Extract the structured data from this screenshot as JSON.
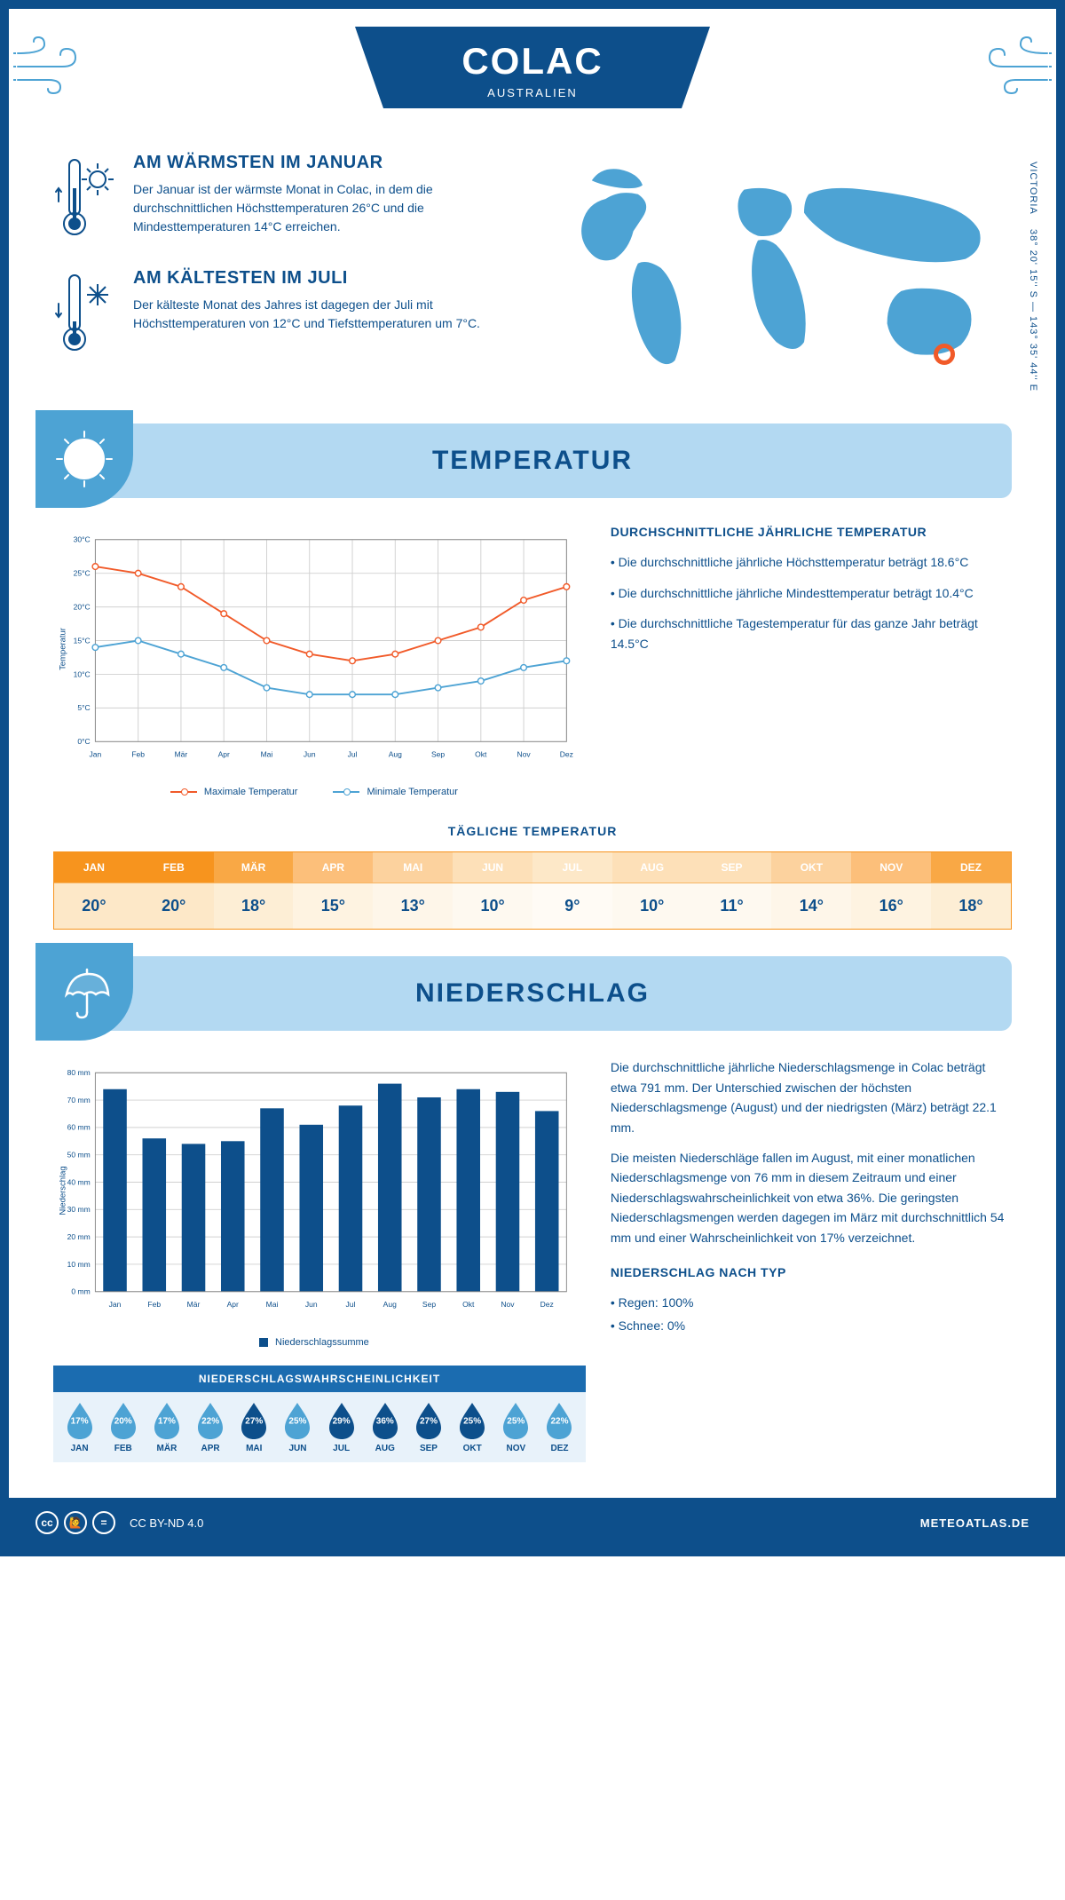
{
  "header": {
    "title": "COLAC",
    "subtitle": "AUSTRALIEN"
  },
  "coords": {
    "lat": "38° 20' 15'' S",
    "lon": "143° 35' 44'' E",
    "region": "VICTORIA"
  },
  "marker_pos": {
    "left_pct": 83,
    "top_pct": 78
  },
  "facts": {
    "warm": {
      "title": "AM WÄRMSTEN IM JANUAR",
      "text": "Der Januar ist der wärmste Monat in Colac, in dem die durchschnittlichen Höchsttemperaturen 26°C und die Mindesttemperaturen 14°C erreichen."
    },
    "cold": {
      "title": "AM KÄLTESTEN IM JULI",
      "text": "Der kälteste Monat des Jahres ist dagegen der Juli mit Höchsttemperaturen von 12°C und Tiefsttemperaturen um 7°C."
    }
  },
  "temperature": {
    "section_title": "TEMPERATUR",
    "annual_title": "DURCHSCHNITTLICHE JÄHRLICHE TEMPERATUR",
    "bullet1": "• Die durchschnittliche jährliche Höchsttemperatur beträgt 18.6°C",
    "bullet2": "• Die durchschnittliche jährliche Mindesttemperatur beträgt 10.4°C",
    "bullet3": "• Die durchschnittliche Tagestemperatur für das ganze Jahr beträgt 14.5°C",
    "daily_title": "TÄGLICHE TEMPERATUR",
    "months": [
      "JAN",
      "FEB",
      "MÄR",
      "APR",
      "MAI",
      "JUN",
      "JUL",
      "AUG",
      "SEP",
      "OKT",
      "NOV",
      "DEZ"
    ],
    "months_full": [
      "Jan",
      "Feb",
      "Mär",
      "Apr",
      "Mai",
      "Jun",
      "Jul",
      "Aug",
      "Sep",
      "Okt",
      "Nov",
      "Dez"
    ],
    "max": [
      26,
      25,
      23,
      19,
      15,
      13,
      12,
      13,
      15,
      17,
      21,
      23
    ],
    "min": [
      14,
      15,
      13,
      11,
      8,
      7,
      7,
      7,
      8,
      9,
      11,
      12
    ],
    "daily": [
      "20°",
      "20°",
      "18°",
      "15°",
      "13°",
      "10°",
      "9°",
      "10°",
      "11°",
      "14°",
      "16°",
      "18°"
    ],
    "head_colors": [
      "#f7941e",
      "#f7941e",
      "#f9a845",
      "#fcbf7a",
      "#fcd29e",
      "#fde0b8",
      "#fde8c8",
      "#fde0b8",
      "#fde0b8",
      "#fcd29e",
      "#fcbf7a",
      "#f9a845"
    ],
    "val_colors": [
      "#fde8c8",
      "#fde8c8",
      "#fdeed5",
      "#fef3e1",
      "#fef6e9",
      "#fef9f0",
      "#fffbf5",
      "#fef9f0",
      "#fef9f0",
      "#fef6e9",
      "#fef3e1",
      "#fdeed5"
    ],
    "y_ticks": [
      "0°C",
      "5°C",
      "10°C",
      "15°C",
      "20°C",
      "25°C",
      "30°C"
    ],
    "y_max": 30,
    "y_label": "Temperatur",
    "legend_max": "Maximale Temperatur",
    "legend_min": "Minimale Temperatur",
    "max_color": "#f15a29",
    "min_color": "#4da3d4"
  },
  "precipitation": {
    "section_title": "NIEDERSCHLAG",
    "months": [
      "Jan",
      "Feb",
      "Mär",
      "Apr",
      "Mai",
      "Jun",
      "Jul",
      "Aug",
      "Sep",
      "Okt",
      "Nov",
      "Dez"
    ],
    "values": [
      74,
      56,
      54,
      55,
      67,
      61,
      68,
      76,
      71,
      74,
      73,
      66
    ],
    "y_ticks": [
      0,
      10,
      20,
      30,
      40,
      50,
      60,
      70,
      80
    ],
    "y_max": 80,
    "y_label": "Niederschlag",
    "legend": "Niederschlagssumme",
    "text1": "Die durchschnittliche jährliche Niederschlagsmenge in Colac beträgt etwa 791 mm. Der Unterschied zwischen der höchsten Niederschlagsmenge (August) und der niedrigsten (März) beträgt 22.1 mm.",
    "text2": "Die meisten Niederschläge fallen im August, mit einer monatlichen Niederschlagsmenge von 76 mm in diesem Zeitraum und einer Niederschlagswahrscheinlichkeit von etwa 36%. Die geringsten Niederschlagsmengen werden dagegen im März mit durchschnittlich 54 mm und einer Wahrscheinlichkeit von 17% verzeichnet.",
    "type_title": "NIEDERSCHLAG NACH TYP",
    "type1": "• Regen: 100%",
    "type2": "• Schnee: 0%",
    "prob_title": "NIEDERSCHLAGSWAHRSCHEINLICHKEIT",
    "prob_months": [
      "JAN",
      "FEB",
      "MÄR",
      "APR",
      "MAI",
      "JUN",
      "JUL",
      "AUG",
      "SEP",
      "OKT",
      "NOV",
      "DEZ"
    ],
    "prob_values": [
      "17%",
      "20%",
      "17%",
      "22%",
      "27%",
      "25%",
      "29%",
      "36%",
      "27%",
      "25%",
      "25%",
      "22%"
    ],
    "prob_colors": [
      "#4da3d4",
      "#4da3d4",
      "#4da3d4",
      "#4da3d4",
      "#0d4f8b",
      "#4da3d4",
      "#0d4f8b",
      "#0d4f8b",
      "#0d4f8b",
      "#0d4f8b",
      "#4da3d4",
      "#4da3d4"
    ]
  },
  "footer": {
    "license": "CC BY-ND 4.0",
    "site": "METEOATLAS.DE"
  },
  "colors": {
    "primary": "#0d4f8b",
    "light_blue": "#4da3d4",
    "section_bg": "#b3d9f2",
    "orange": "#f7941e",
    "accent_orange": "#f15a29"
  }
}
